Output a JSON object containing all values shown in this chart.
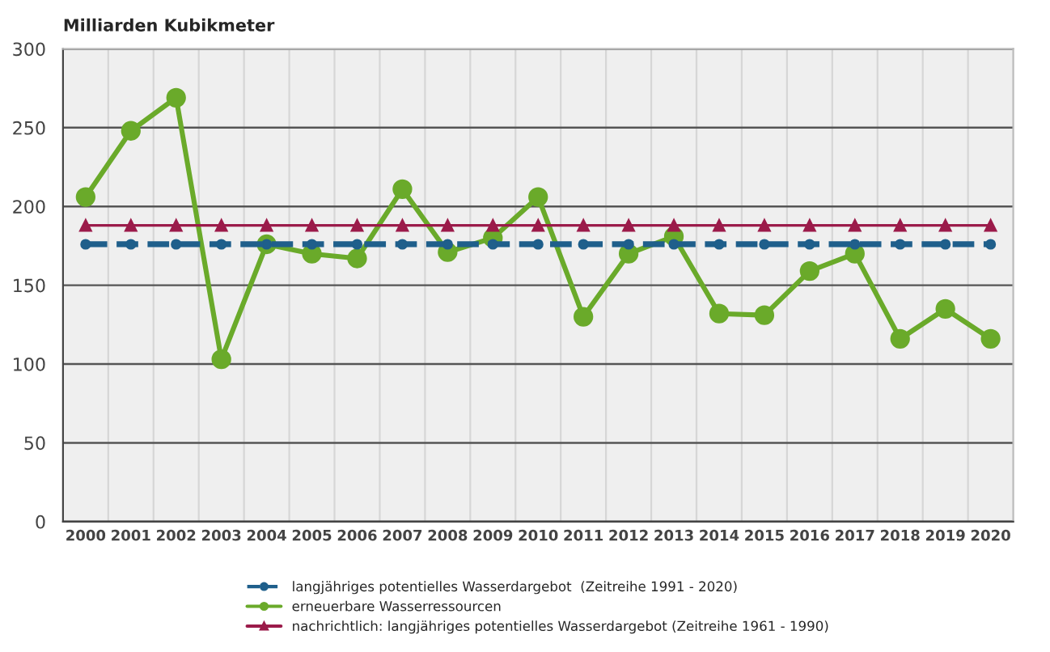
{
  "chart_data": {
    "type": "line",
    "ylabel": "Milliarden Kubikmeter",
    "categories": [
      "2000",
      "2001",
      "2002",
      "2003",
      "2004",
      "2005",
      "2006",
      "2007",
      "2008",
      "2009",
      "2010",
      "2011",
      "2012",
      "2013",
      "2014",
      "2015",
      "2016",
      "2017",
      "2018",
      "2019",
      "2020"
    ],
    "series": [
      {
        "name": "langjähriges potentielles Wasserdargebot  (Zeitreihe 1991 - 2020)",
        "color": "#1f5f8b",
        "marker": "circle",
        "line_style": "dashed",
        "values": [
          176,
          176,
          176,
          176,
          176,
          176,
          176,
          176,
          176,
          176,
          176,
          176,
          176,
          176,
          176,
          176,
          176,
          176,
          176,
          176,
          176
        ]
      },
      {
        "name": "erneuerbare Wasserressourcen",
        "color": "#6aaa2a",
        "marker": "circle",
        "line_style": "solid",
        "values": [
          206,
          248,
          269,
          103,
          176,
          170,
          167,
          211,
          171,
          180,
          206,
          130,
          170,
          181,
          132,
          131,
          159,
          170,
          116,
          135,
          116
        ]
      },
      {
        "name": "nachrichtlich: langjähriges potentielles Wasserdargebot (Zeitreihe 1961 - 1990)",
        "color": "#9b1b4a",
        "marker": "triangle",
        "line_style": "solid",
        "values": [
          188,
          188,
          188,
          188,
          188,
          188,
          188,
          188,
          188,
          188,
          188,
          188,
          188,
          188,
          188,
          188,
          188,
          188,
          188,
          188,
          188
        ]
      }
    ],
    "ylim": [
      0,
      300
    ],
    "yticks": [
      0,
      50,
      100,
      150,
      200,
      250,
      300
    ],
    "grid": true,
    "legend": "bottom"
  }
}
